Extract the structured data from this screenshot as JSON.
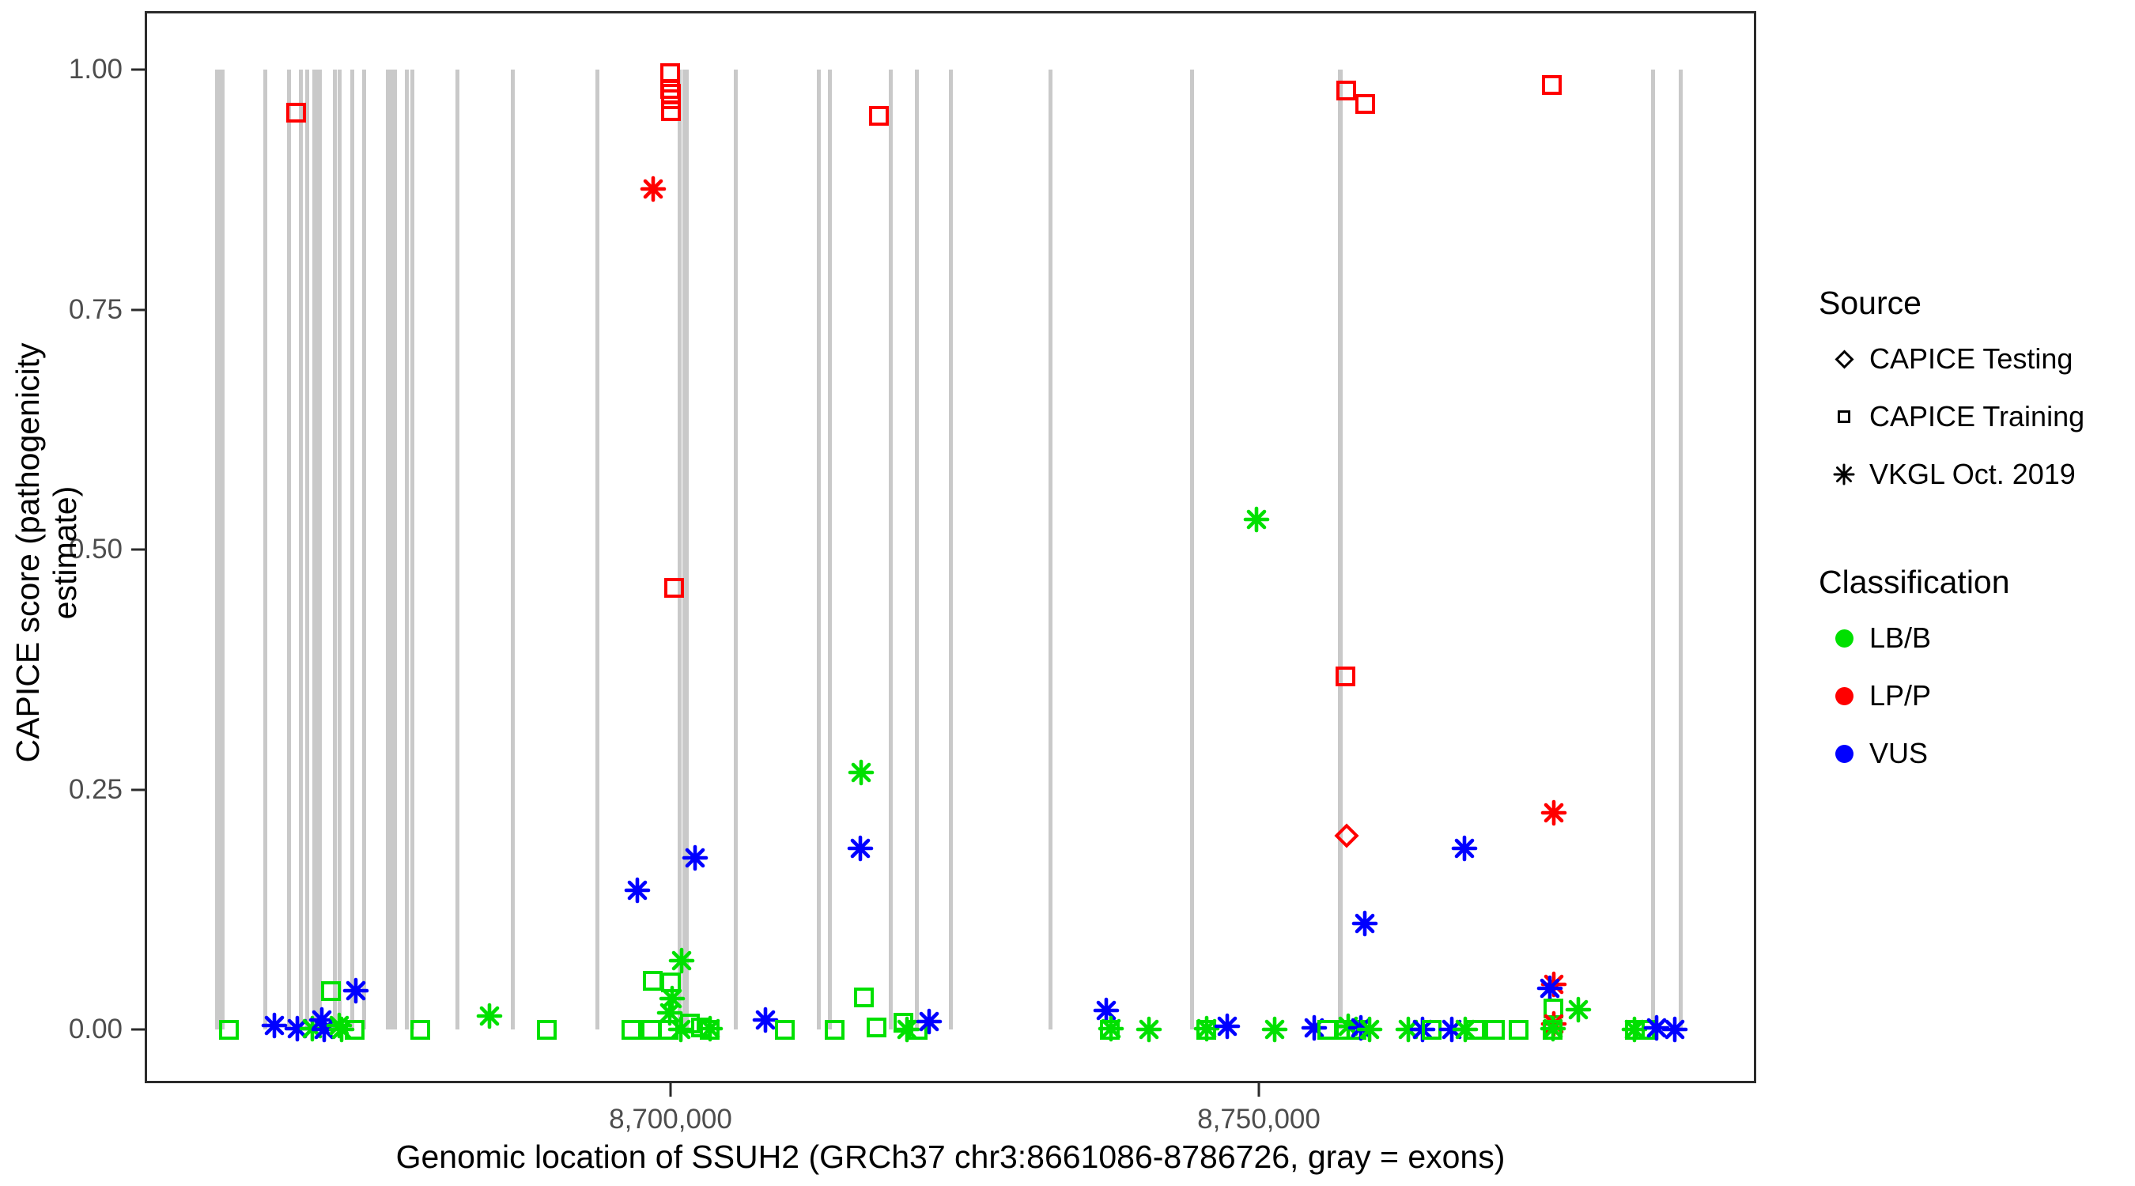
{
  "y_axis": {
    "label": "CAPICE score (pathogenicity estimate)",
    "ticks": [
      {
        "value": 0.0,
        "label": "0.00"
      },
      {
        "value": 0.25,
        "label": "0.25"
      },
      {
        "value": 0.5,
        "label": "0.50"
      },
      {
        "value": 0.75,
        "label": "0.75"
      },
      {
        "value": 1.0,
        "label": "1.00"
      }
    ]
  },
  "x_axis": {
    "label": "Genomic location of SSUH2 (GRCh37 chr3:8661086-8786726, gray = exons)",
    "domain": [
      8655320,
      8792266
    ],
    "ticks": [
      {
        "value": 8700000,
        "label": "8,700,000"
      },
      {
        "value": 8750000,
        "label": "8,750,000"
      }
    ]
  },
  "legend": {
    "source": {
      "title": "Source",
      "items": [
        {
          "symbol": "diamond",
          "label": "CAPICE Testing"
        },
        {
          "symbol": "square",
          "label": "CAPICE Training"
        },
        {
          "symbol": "asterisk",
          "label": "VKGL Oct. 2019"
        }
      ]
    },
    "classification": {
      "title": "Classification",
      "items": [
        {
          "color": "#00E000",
          "label": "LB/B"
        },
        {
          "color": "#FF0000",
          "label": "LP/P"
        },
        {
          "color": "#0000FF",
          "label": "VUS"
        }
      ]
    }
  },
  "colors": {
    "LB/B": "#00E000",
    "LP/P": "#FF0000",
    "VUS": "#0000FF",
    "exon": "#c9c9c9",
    "axis": "#2b2b2b",
    "tick_text": "#4d4d4d"
  },
  "chart_data": {
    "type": "scatter",
    "title": "",
    "xlabel": "Genomic location of SSUH2 (GRCh37 chr3:8661086-8786726, gray = exons)",
    "ylabel": "CAPICE score (pathogenicity estimate)",
    "xlim": [
      8655320,
      8792266
    ],
    "ylim": [
      0,
      1
    ],
    "grid": false,
    "legend_position": "right",
    "exon_note": "gray vertical bars mark exons, drawn from score 0 to 1",
    "exons": [
      {
        "pos": 8661500,
        "bp": 800
      },
      {
        "pos": 8665400,
        "bp": 340
      },
      {
        "pos": 8667450,
        "bp": 340
      },
      {
        "pos": 8668450,
        "bp": 340
      },
      {
        "pos": 8669000,
        "bp": 340
      },
      {
        "pos": 8669800,
        "bp": 800
      },
      {
        "pos": 8671300,
        "bp": 340
      },
      {
        "pos": 8671700,
        "bp": 340
      },
      {
        "pos": 8672800,
        "bp": 340
      },
      {
        "pos": 8673800,
        "bp": 340
      },
      {
        "pos": 8676150,
        "bp": 950
      },
      {
        "pos": 8677450,
        "bp": 340
      },
      {
        "pos": 8677900,
        "bp": 340
      },
      {
        "pos": 8681800,
        "bp": 340
      },
      {
        "pos": 8686500,
        "bp": 340
      },
      {
        "pos": 8693700,
        "bp": 340
      },
      {
        "pos": 8700700,
        "bp": 380
      },
      {
        "pos": 8701200,
        "bp": 540
      },
      {
        "pos": 8705500,
        "bp": 340
      },
      {
        "pos": 8712550,
        "bp": 340
      },
      {
        "pos": 8713500,
        "bp": 340
      },
      {
        "pos": 8718700,
        "bp": 340
      },
      {
        "pos": 8720900,
        "bp": 340
      },
      {
        "pos": 8723850,
        "bp": 340
      },
      {
        "pos": 8732300,
        "bp": 340
      },
      {
        "pos": 8744400,
        "bp": 340
      },
      {
        "pos": 8757000,
        "bp": 400
      },
      {
        "pos": 8783700,
        "bp": 340
      },
      {
        "pos": 8786000,
        "bp": 340
      }
    ],
    "points": [
      {
        "pos": 8662300,
        "score": 0.0,
        "source": "CAPICE Training",
        "class": "LB/B"
      },
      {
        "pos": 8666200,
        "score": 0.004,
        "source": "VKGL Oct. 2019",
        "class": "VUS"
      },
      {
        "pos": 8668000,
        "score": 0.955,
        "source": "CAPICE Training",
        "class": "LP/P"
      },
      {
        "pos": 8668100,
        "score": 0.001,
        "source": "VKGL Oct. 2019",
        "class": "VUS"
      },
      {
        "pos": 8669400,
        "score": 0.001,
        "source": "VKGL Oct. 2019",
        "class": "LB/B"
      },
      {
        "pos": 8670200,
        "score": 0.01,
        "source": "VKGL Oct. 2019",
        "class": "VUS"
      },
      {
        "pos": 8670400,
        "score": 0.0,
        "source": "VKGL Oct. 2019",
        "class": "VUS"
      },
      {
        "pos": 8671000,
        "score": 0.04,
        "source": "CAPICE Training",
        "class": "LB/B"
      },
      {
        "pos": 8671700,
        "score": 0.004,
        "source": "VKGL Oct. 2019",
        "class": "LB/B"
      },
      {
        "pos": 8671900,
        "score": 0.0,
        "source": "VKGL Oct. 2019",
        "class": "LB/B"
      },
      {
        "pos": 8673000,
        "score": 0.0,
        "source": "CAPICE Training",
        "class": "LB/B"
      },
      {
        "pos": 8673100,
        "score": 0.04,
        "source": "VKGL Oct. 2019",
        "class": "VUS"
      },
      {
        "pos": 8678600,
        "score": 0.0,
        "source": "CAPICE Training",
        "class": "LB/B"
      },
      {
        "pos": 8684500,
        "score": 0.014,
        "source": "VKGL Oct. 2019",
        "class": "LB/B"
      },
      {
        "pos": 8689400,
        "score": 0.0,
        "source": "CAPICE Training",
        "class": "LB/B"
      },
      {
        "pos": 8696600,
        "score": 0.0,
        "source": "CAPICE Training",
        "class": "LB/B"
      },
      {
        "pos": 8697100,
        "score": 0.145,
        "source": "VKGL Oct. 2019",
        "class": "VUS"
      },
      {
        "pos": 8698300,
        "score": 0.0,
        "source": "CAPICE Training",
        "class": "LB/B"
      },
      {
        "pos": 8698450,
        "score": 0.051,
        "source": "CAPICE Training",
        "class": "LB/B"
      },
      {
        "pos": 8698450,
        "score": 0.876,
        "source": "VKGL Oct. 2019",
        "class": "LP/P"
      },
      {
        "pos": 8699800,
        "score": 0.0,
        "source": "CAPICE Training",
        "class": "LB/B"
      },
      {
        "pos": 8699900,
        "score": 0.017,
        "source": "VKGL Oct. 2019",
        "class": "LB/B"
      },
      {
        "pos": 8700000,
        "score": 0.049,
        "source": "CAPICE Training",
        "class": "LB/B"
      },
      {
        "pos": 8699900,
        "score": 0.996,
        "source": "CAPICE Training",
        "class": "LP/P"
      },
      {
        "pos": 8699900,
        "score": 0.98,
        "source": "CAPICE Training",
        "class": "LP/P"
      },
      {
        "pos": 8699950,
        "score": 0.975,
        "source": "CAPICE Training",
        "class": "LP/P"
      },
      {
        "pos": 8699950,
        "score": 0.969,
        "source": "CAPICE Training",
        "class": "LP/P"
      },
      {
        "pos": 8700000,
        "score": 0.957,
        "source": "CAPICE Training",
        "class": "LP/P"
      },
      {
        "pos": 8700100,
        "score": 0.032,
        "source": "VKGL Oct. 2019",
        "class": "LB/B"
      },
      {
        "pos": 8700270,
        "score": 0.46,
        "source": "CAPICE Training",
        "class": "LP/P"
      },
      {
        "pos": 8700800,
        "score": 0.0,
        "source": "VKGL Oct. 2019",
        "class": "LB/B"
      },
      {
        "pos": 8700900,
        "score": 0.072,
        "source": "VKGL Oct. 2019",
        "class": "LB/B"
      },
      {
        "pos": 8701600,
        "score": 0.006,
        "source": "CAPICE Training",
        "class": "LB/B"
      },
      {
        "pos": 8702000,
        "score": 0.179,
        "source": "VKGL Oct. 2019",
        "class": "VUS"
      },
      {
        "pos": 8702500,
        "score": 0.002,
        "source": "CAPICE Training",
        "class": "LB/B"
      },
      {
        "pos": 8703300,
        "score": 0.0,
        "source": "CAPICE Training",
        "class": "LB/B"
      },
      {
        "pos": 8703300,
        "score": 0.001,
        "source": "VKGL Oct. 2019",
        "class": "LB/B"
      },
      {
        "pos": 8708000,
        "score": 0.01,
        "source": "VKGL Oct. 2019",
        "class": "VUS"
      },
      {
        "pos": 8709700,
        "score": 0.0,
        "source": "CAPICE Training",
        "class": "LB/B"
      },
      {
        "pos": 8713900,
        "score": 0.0,
        "source": "CAPICE Training",
        "class": "LB/B"
      },
      {
        "pos": 8716100,
        "score": 0.189,
        "source": "VKGL Oct. 2019",
        "class": "VUS"
      },
      {
        "pos": 8716200,
        "score": 0.268,
        "source": "VKGL Oct. 2019",
        "class": "LB/B"
      },
      {
        "pos": 8716400,
        "score": 0.033,
        "source": "CAPICE Training",
        "class": "LB/B"
      },
      {
        "pos": 8717500,
        "score": 0.002,
        "source": "CAPICE Training",
        "class": "LB/B"
      },
      {
        "pos": 8717700,
        "score": 0.952,
        "source": "CAPICE Training",
        "class": "LP/P"
      },
      {
        "pos": 8719800,
        "score": 0.007,
        "source": "CAPICE Training",
        "class": "LB/B"
      },
      {
        "pos": 8720100,
        "score": 0.0,
        "source": "VKGL Oct. 2019",
        "class": "LB/B"
      },
      {
        "pos": 8721000,
        "score": 0.0,
        "source": "CAPICE Training",
        "class": "LB/B"
      },
      {
        "pos": 8722000,
        "score": 0.008,
        "source": "VKGL Oct. 2019",
        "class": "VUS"
      },
      {
        "pos": 8737100,
        "score": 0.02,
        "source": "VKGL Oct. 2019",
        "class": "VUS"
      },
      {
        "pos": 8737400,
        "score": 0.0,
        "source": "CAPICE Training",
        "class": "LB/B"
      },
      {
        "pos": 8737450,
        "score": 0.001,
        "source": "VKGL Oct. 2019",
        "class": "LB/B"
      },
      {
        "pos": 8740700,
        "score": 0.0,
        "source": "VKGL Oct. 2019",
        "class": "LB/B"
      },
      {
        "pos": 8745600,
        "score": 0.0,
        "source": "CAPICE Training",
        "class": "LB/B"
      },
      {
        "pos": 8745650,
        "score": 0.001,
        "source": "VKGL Oct. 2019",
        "class": "LB/B"
      },
      {
        "pos": 8747400,
        "score": 0.003,
        "source": "VKGL Oct. 2019",
        "class": "VUS"
      },
      {
        "pos": 8749900,
        "score": 0.531,
        "source": "VKGL Oct. 2019",
        "class": "LB/B"
      },
      {
        "pos": 8751400,
        "score": 0.0,
        "source": "VKGL Oct. 2019",
        "class": "LB/B"
      },
      {
        "pos": 8754800,
        "score": 0.002,
        "source": "VKGL Oct. 2019",
        "class": "VUS"
      },
      {
        "pos": 8755900,
        "score": 0.0,
        "source": "CAPICE Training",
        "class": "LB/B"
      },
      {
        "pos": 8757460,
        "score": 0.0,
        "source": "CAPICE Training",
        "class": "LB/B"
      },
      {
        "pos": 8757460,
        "score": 0.368,
        "source": "CAPICE Training",
        "class": "LP/P"
      },
      {
        "pos": 8757520,
        "score": 0.978,
        "source": "CAPICE Training",
        "class": "LP/P"
      },
      {
        "pos": 8757590,
        "score": 0.202,
        "source": "CAPICE Testing",
        "class": "LP/P"
      },
      {
        "pos": 8757700,
        "score": 0.003,
        "source": "VKGL Oct. 2019",
        "class": "LB/B"
      },
      {
        "pos": 8758400,
        "score": 0.0,
        "source": "CAPICE Training",
        "class": "LB/B"
      },
      {
        "pos": 8758800,
        "score": 0.002,
        "source": "VKGL Oct. 2019",
        "class": "VUS"
      },
      {
        "pos": 8759100,
        "score": 0.11,
        "source": "VKGL Oct. 2019",
        "class": "VUS"
      },
      {
        "pos": 8759140,
        "score": 0.964,
        "source": "CAPICE Training",
        "class": "LP/P"
      },
      {
        "pos": 8759500,
        "score": 0.0,
        "source": "VKGL Oct. 2019",
        "class": "LB/B"
      },
      {
        "pos": 8762800,
        "score": 0.0,
        "source": "VKGL Oct. 2019",
        "class": "LB/B"
      },
      {
        "pos": 8764000,
        "score": 0.0,
        "source": "VKGL Oct. 2019",
        "class": "VUS"
      },
      {
        "pos": 8764800,
        "score": 0.0,
        "source": "CAPICE Training",
        "class": "LB/B"
      },
      {
        "pos": 8766500,
        "score": 0.0,
        "source": "VKGL Oct. 2019",
        "class": "VUS"
      },
      {
        "pos": 8767600,
        "score": 0.189,
        "source": "VKGL Oct. 2019",
        "class": "VUS"
      },
      {
        "pos": 8767700,
        "score": 0.0,
        "source": "VKGL Oct. 2019",
        "class": "LB/B"
      },
      {
        "pos": 8768500,
        "score": 0.0,
        "source": "CAPICE Training",
        "class": "LB/B"
      },
      {
        "pos": 8770200,
        "score": 0.0,
        "source": "CAPICE Training",
        "class": "LB/B"
      },
      {
        "pos": 8772200,
        "score": 0.0,
        "source": "CAPICE Training",
        "class": "LB/B"
      },
      {
        "pos": 8775060,
        "score": 0.984,
        "source": "CAPICE Training",
        "class": "LP/P"
      },
      {
        "pos": 8775200,
        "score": 0.226,
        "source": "VKGL Oct. 2019",
        "class": "LP/P"
      },
      {
        "pos": 8775200,
        "score": 0.047,
        "source": "VKGL Oct. 2019",
        "class": "LP/P"
      },
      {
        "pos": 8774900,
        "score": 0.043,
        "source": "VKGL Oct. 2019",
        "class": "VUS"
      },
      {
        "pos": 8775200,
        "score": 0.022,
        "source": "CAPICE Training",
        "class": "LB/B"
      },
      {
        "pos": 8775200,
        "score": 0.006,
        "source": "VKGL Oct. 2019",
        "class": "LP/P"
      },
      {
        "pos": 8775100,
        "score": 0.0,
        "source": "CAPICE Training",
        "class": "LB/B"
      },
      {
        "pos": 8775150,
        "score": 0.001,
        "source": "VKGL Oct. 2019",
        "class": "LB/B"
      },
      {
        "pos": 8777300,
        "score": 0.021,
        "source": "VKGL Oct. 2019",
        "class": "LB/B"
      },
      {
        "pos": 8782100,
        "score": 0.0,
        "source": "VKGL Oct. 2019",
        "class": "LB/B"
      },
      {
        "pos": 8782150,
        "score": 0.0,
        "source": "CAPICE Training",
        "class": "LB/B"
      },
      {
        "pos": 8783000,
        "score": 0.0,
        "source": "CAPICE Training",
        "class": "LB/B"
      },
      {
        "pos": 8784000,
        "score": 0.002,
        "source": "VKGL Oct. 2019",
        "class": "VUS"
      },
      {
        "pos": 8785500,
        "score": 0.0,
        "source": "VKGL Oct. 2019",
        "class": "VUS"
      }
    ]
  }
}
